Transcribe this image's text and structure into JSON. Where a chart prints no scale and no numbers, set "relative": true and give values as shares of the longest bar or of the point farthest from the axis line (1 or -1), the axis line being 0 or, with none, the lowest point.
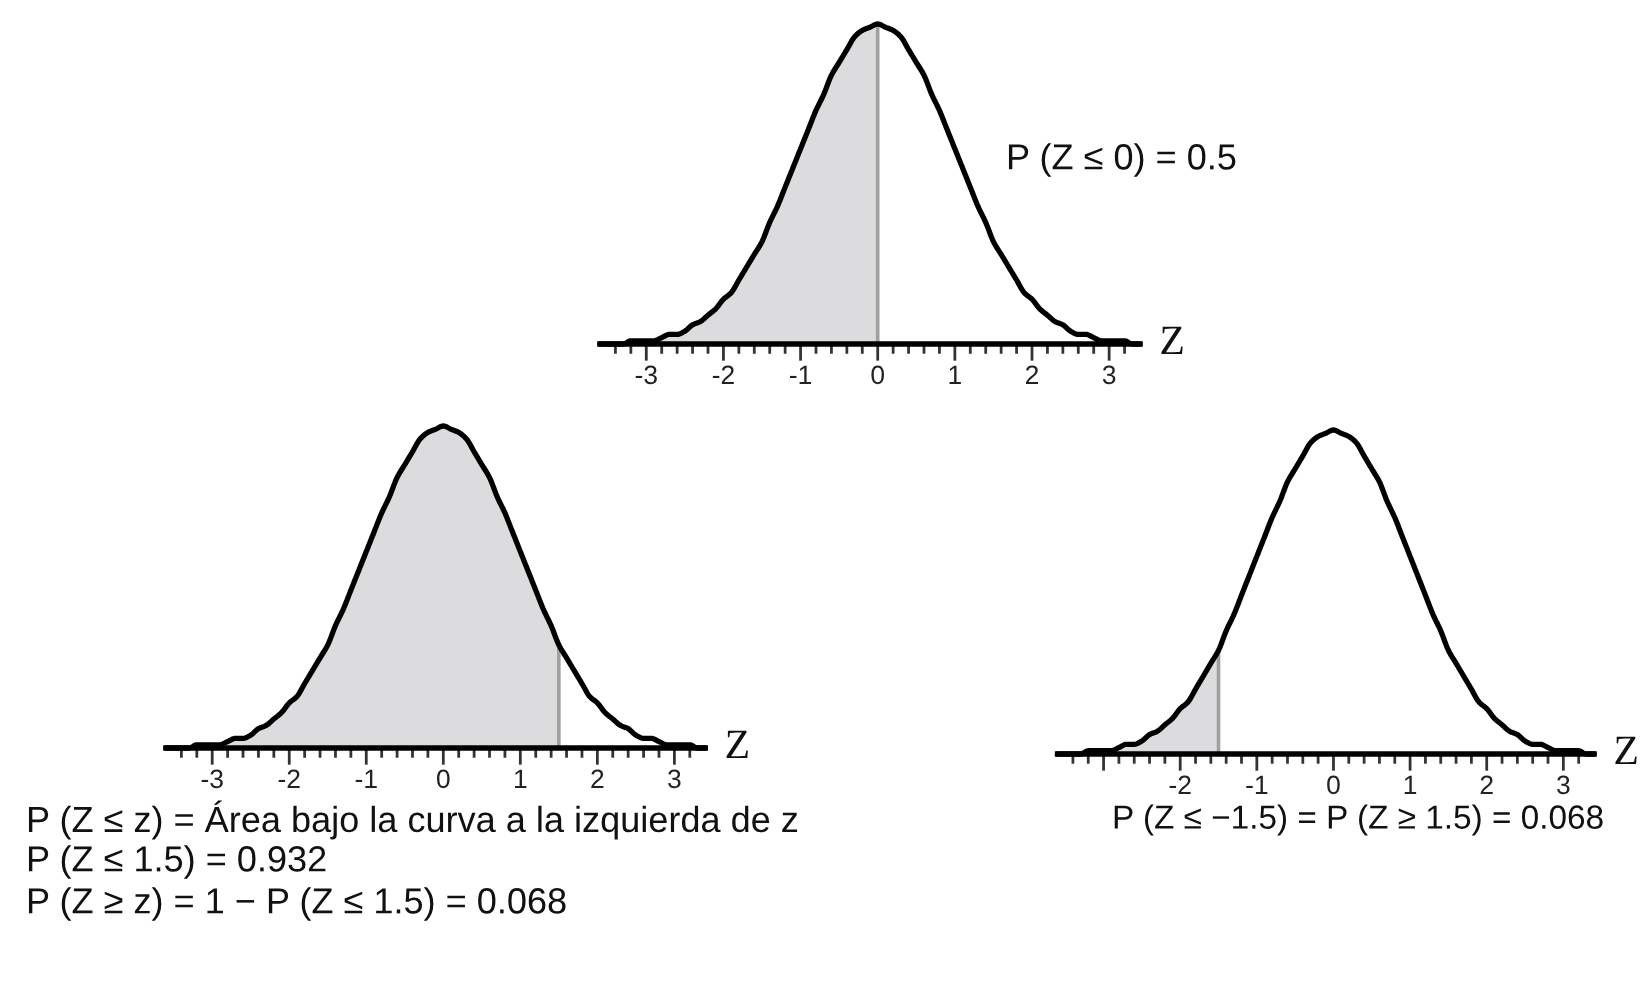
{
  "chart_data": [
    {
      "type": "line",
      "relative": true,
      "xlabel": "Z",
      "xlim": [
        -3.6,
        3.4
      ],
      "xticks": [
        {
          "value": -3.4,
          "label": null
        },
        {
          "value": -3.2,
          "label": null
        },
        -3,
        {
          "value": -2.8,
          "label": null
        },
        {
          "value": -2.6,
          "label": null
        },
        {
          "value": -2.4,
          "label": null
        },
        {
          "value": -2.2,
          "label": null
        },
        -2,
        {
          "value": -1.8,
          "label": null
        },
        {
          "value": -1.6,
          "label": null
        },
        {
          "value": -1.4,
          "label": null
        },
        {
          "value": -1.2,
          "label": null
        },
        -1,
        {
          "value": -0.8,
          "label": null
        },
        {
          "value": -0.6,
          "label": null
        },
        {
          "value": -0.4,
          "label": null
        },
        {
          "value": -0.2,
          "label": null
        },
        0,
        {
          "value": 0.2,
          "label": null
        },
        {
          "value": 0.4,
          "label": null
        },
        {
          "value": 0.6,
          "label": null
        },
        {
          "value": 0.8,
          "label": null
        },
        1,
        {
          "value": 1.2,
          "label": null
        },
        {
          "value": 1.4,
          "label": null
        },
        {
          "value": 1.6,
          "label": null
        },
        {
          "value": 1.8,
          "label": null
        },
        2,
        {
          "value": 2.2,
          "label": null
        },
        {
          "value": 2.4,
          "label": null
        },
        {
          "value": 2.6,
          "label": null
        },
        {
          "value": 2.8,
          "label": null
        },
        3,
        {
          "value": 3.2,
          "label": null
        }
      ],
      "x": [
        -3.6,
        -3.5,
        -3.4,
        -3.3,
        -3.2,
        -3.1,
        -3.0,
        -2.9,
        -2.8,
        -2.7,
        -2.6,
        -2.5,
        -2.4,
        -2.3,
        -2.2,
        -2.1,
        -2.0,
        -1.9,
        -1.8,
        -1.7,
        -1.6,
        -1.5,
        -1.4,
        -1.3,
        -1.2,
        -1.1,
        -1.0,
        -0.9,
        -0.8,
        -0.7,
        -0.6,
        -0.5,
        -0.4,
        -0.3,
        -0.2,
        -0.1,
        0,
        0.1,
        0.2,
        0.3,
        0.4,
        0.5,
        0.6,
        0.7,
        0.8,
        0.9,
        1.0,
        1.1,
        1.2,
        1.3,
        1.4,
        1.5,
        1.6,
        1.7,
        1.8,
        1.9,
        2.0,
        2.1,
        2.2,
        2.3,
        2.4,
        2.5,
        2.6,
        2.7,
        2.8,
        2.9,
        3.0,
        3.1,
        3.2,
        3.3,
        3.4
      ],
      "series": [
        {
          "type": "area",
          "color": "#dcdcdf",
          "x": [
            -3.6,
            -3.5,
            -3.4,
            -3.3,
            -3.2,
            -3.1,
            -3.0,
            -2.9,
            -2.8,
            -2.7,
            -2.6,
            -2.5,
            -2.4,
            -2.3,
            -2.2,
            -2.1,
            -2.0,
            -1.9,
            -1.8,
            -1.7,
            -1.6,
            -1.5,
            -1.4,
            -1.3,
            -1.2,
            -1.1,
            -1.0,
            -0.9,
            -0.8,
            -0.7,
            -0.6,
            -0.5,
            -0.4,
            -0.3,
            -0.2,
            -0.1,
            0
          ],
          "values": [
            0,
            0,
            0,
            0,
            0.01,
            0.01,
            0.01,
            0.01,
            0.02,
            0.03,
            0.03,
            0.04,
            0.06,
            0.07,
            0.09,
            0.11,
            0.14,
            0.16,
            0.2,
            0.24,
            0.28,
            0.32,
            0.38,
            0.43,
            0.49,
            0.55,
            0.61,
            0.67,
            0.73,
            0.78,
            0.84,
            0.88,
            0.92,
            0.96,
            0.98,
            0.99,
            1.0
          ]
        },
        {
          "color": "#000000",
          "values": [
            0,
            0,
            0,
            0,
            0.01,
            0.01,
            0.01,
            0.01,
            0.02,
            0.03,
            0.03,
            0.04,
            0.06,
            0.07,
            0.09,
            0.11,
            0.14,
            0.16,
            0.2,
            0.24,
            0.28,
            0.32,
            0.38,
            0.43,
            0.49,
            0.55,
            0.61,
            0.67,
            0.73,
            0.78,
            0.84,
            0.88,
            0.92,
            0.96,
            0.98,
            0.99,
            1.0,
            0.99,
            0.98,
            0.96,
            0.92,
            0.88,
            0.84,
            0.78,
            0.73,
            0.67,
            0.61,
            0.55,
            0.49,
            0.43,
            0.38,
            0.32,
            0.28,
            0.24,
            0.2,
            0.16,
            0.14,
            0.11,
            0.09,
            0.07,
            0.06,
            0.04,
            0.03,
            0.03,
            0.02,
            0.01,
            0.01,
            0.01,
            0.01,
            0,
            0
          ]
        }
      ],
      "ref_lines": [
        {
          "axis": "x",
          "value": 0,
          "color": "#a0a0a0"
        }
      ],
      "annotations": [
        "P (Z ≤ 0) = 0.5"
      ]
    },
    {
      "type": "line",
      "relative": true,
      "xlabel": "Z",
      "xlim": [
        -3.6,
        3.4
      ],
      "xticks": [
        {
          "value": -3.4,
          "label": null
        },
        {
          "value": -3.2,
          "label": null
        },
        -3,
        {
          "value": -2.8,
          "label": null
        },
        {
          "value": -2.6,
          "label": null
        },
        {
          "value": -2.4,
          "label": null
        },
        {
          "value": -2.2,
          "label": null
        },
        -2,
        {
          "value": -1.8,
          "label": null
        },
        {
          "value": -1.6,
          "label": null
        },
        {
          "value": -1.4,
          "label": null
        },
        {
          "value": -1.2,
          "label": null
        },
        -1,
        {
          "value": -0.8,
          "label": null
        },
        {
          "value": -0.6,
          "label": null
        },
        {
          "value": -0.4,
          "label": null
        },
        {
          "value": -0.2,
          "label": null
        },
        0,
        {
          "value": 0.2,
          "label": null
        },
        {
          "value": 0.4,
          "label": null
        },
        {
          "value": 0.6,
          "label": null
        },
        {
          "value": 0.8,
          "label": null
        },
        1,
        {
          "value": 1.2,
          "label": null
        },
        {
          "value": 1.4,
          "label": null
        },
        {
          "value": 1.6,
          "label": null
        },
        {
          "value": 1.8,
          "label": null
        },
        2,
        {
          "value": 2.2,
          "label": null
        },
        {
          "value": 2.4,
          "label": null
        },
        {
          "value": 2.6,
          "label": null
        },
        {
          "value": 2.8,
          "label": null
        },
        3,
        {
          "value": 3.2,
          "label": null
        }
      ],
      "x": [
        -3.6,
        -3.5,
        -3.4,
        -3.3,
        -3.2,
        -3.1,
        -3.0,
        -2.9,
        -2.8,
        -2.7,
        -2.6,
        -2.5,
        -2.4,
        -2.3,
        -2.2,
        -2.1,
        -2.0,
        -1.9,
        -1.8,
        -1.7,
        -1.6,
        -1.5,
        -1.4,
        -1.3,
        -1.2,
        -1.1,
        -1.0,
        -0.9,
        -0.8,
        -0.7,
        -0.6,
        -0.5,
        -0.4,
        -0.3,
        -0.2,
        -0.1,
        0,
        0.1,
        0.2,
        0.3,
        0.4,
        0.5,
        0.6,
        0.7,
        0.8,
        0.9,
        1.0,
        1.1,
        1.2,
        1.3,
        1.4,
        1.5,
        1.6,
        1.7,
        1.8,
        1.9,
        2.0,
        2.1,
        2.2,
        2.3,
        2.4,
        2.5,
        2.6,
        2.7,
        2.8,
        2.9,
        3.0,
        3.1,
        3.2,
        3.3,
        3.4
      ],
      "series": [
        {
          "type": "area",
          "color": "#dcdcdf",
          "x": [
            -3.6,
            -3.5,
            -3.4,
            -3.3,
            -3.2,
            -3.1,
            -3.0,
            -2.9,
            -2.8,
            -2.7,
            -2.6,
            -2.5,
            -2.4,
            -2.3,
            -2.2,
            -2.1,
            -2.0,
            -1.9,
            -1.8,
            -1.7,
            -1.6,
            -1.5,
            -1.4,
            -1.3,
            -1.2,
            -1.1,
            -1.0,
            -0.9,
            -0.8,
            -0.7,
            -0.6,
            -0.5,
            -0.4,
            -0.3,
            -0.2,
            -0.1,
            0,
            0.1,
            0.2,
            0.3,
            0.4,
            0.5,
            0.6,
            0.7,
            0.8,
            0.9,
            1.0,
            1.1,
            1.2,
            1.3,
            1.4,
            1.5
          ],
          "values": [
            0,
            0,
            0,
            0,
            0.01,
            0.01,
            0.01,
            0.01,
            0.02,
            0.03,
            0.03,
            0.04,
            0.06,
            0.07,
            0.09,
            0.11,
            0.14,
            0.16,
            0.2,
            0.24,
            0.28,
            0.32,
            0.38,
            0.43,
            0.49,
            0.55,
            0.61,
            0.67,
            0.73,
            0.78,
            0.84,
            0.88,
            0.92,
            0.96,
            0.98,
            0.99,
            1.0,
            0.99,
            0.98,
            0.96,
            0.92,
            0.88,
            0.84,
            0.78,
            0.73,
            0.67,
            0.61,
            0.55,
            0.49,
            0.43,
            0.38,
            0.32
          ]
        },
        {
          "color": "#000000",
          "values": [
            0,
            0,
            0,
            0,
            0.01,
            0.01,
            0.01,
            0.01,
            0.02,
            0.03,
            0.03,
            0.04,
            0.06,
            0.07,
            0.09,
            0.11,
            0.14,
            0.16,
            0.2,
            0.24,
            0.28,
            0.32,
            0.38,
            0.43,
            0.49,
            0.55,
            0.61,
            0.67,
            0.73,
            0.78,
            0.84,
            0.88,
            0.92,
            0.96,
            0.98,
            0.99,
            1.0,
            0.99,
            0.98,
            0.96,
            0.92,
            0.88,
            0.84,
            0.78,
            0.73,
            0.67,
            0.61,
            0.55,
            0.49,
            0.43,
            0.38,
            0.32,
            0.28,
            0.24,
            0.2,
            0.16,
            0.14,
            0.11,
            0.09,
            0.07,
            0.06,
            0.04,
            0.03,
            0.03,
            0.02,
            0.01,
            0.01,
            0.01,
            0.01,
            0,
            0
          ]
        }
      ],
      "ref_lines": [
        {
          "axis": "x",
          "value": 1.5,
          "color": "#a0a0a0"
        }
      ],
      "annotations": [
        "P (Z ≤ z) = Área bajo la curva a la izquierda de z",
        "P (Z ≤ 1.5) = 0.932",
        "P (Z ≥ z) = 1 − P (Z ≤ 1.5) = 0.068"
      ]
    },
    {
      "type": "line",
      "relative": true,
      "xlabel": "Z",
      "xlim": [
        -3.6,
        3.4
      ],
      "xticks": [
        {
          "value": -3.4,
          "label": null
        },
        {
          "value": -3.2,
          "label": null
        },
        {
          "value": -3,
          "label": null
        },
        {
          "value": -2.8,
          "label": null
        },
        {
          "value": -2.6,
          "label": null
        },
        {
          "value": -2.4,
          "label": null
        },
        {
          "value": -2.2,
          "label": null
        },
        -2,
        {
          "value": -1.8,
          "label": null
        },
        {
          "value": -1.6,
          "label": null
        },
        {
          "value": -1.4,
          "label": null
        },
        {
          "value": -1.2,
          "label": null
        },
        -1,
        {
          "value": -0.8,
          "label": null
        },
        {
          "value": -0.6,
          "label": null
        },
        {
          "value": -0.4,
          "label": null
        },
        {
          "value": -0.2,
          "label": null
        },
        0,
        {
          "value": 0.2,
          "label": null
        },
        {
          "value": 0.4,
          "label": null
        },
        {
          "value": 0.6,
          "label": null
        },
        {
          "value": 0.8,
          "label": null
        },
        1,
        {
          "value": 1.2,
          "label": null
        },
        {
          "value": 1.4,
          "label": null
        },
        {
          "value": 1.6,
          "label": null
        },
        {
          "value": 1.8,
          "label": null
        },
        2,
        {
          "value": 2.2,
          "label": null
        },
        {
          "value": 2.4,
          "label": null
        },
        {
          "value": 2.6,
          "label": null
        },
        {
          "value": 2.8,
          "label": null
        },
        3,
        {
          "value": 3.2,
          "label": null
        }
      ],
      "x": [
        -3.6,
        -3.5,
        -3.4,
        -3.3,
        -3.2,
        -3.1,
        -3.0,
        -2.9,
        -2.8,
        -2.7,
        -2.6,
        -2.5,
        -2.4,
        -2.3,
        -2.2,
        -2.1,
        -2.0,
        -1.9,
        -1.8,
        -1.7,
        -1.6,
        -1.5,
        -1.4,
        -1.3,
        -1.2,
        -1.1,
        -1.0,
        -0.9,
        -0.8,
        -0.7,
        -0.6,
        -0.5,
        -0.4,
        -0.3,
        -0.2,
        -0.1,
        0,
        0.1,
        0.2,
        0.3,
        0.4,
        0.5,
        0.6,
        0.7,
        0.8,
        0.9,
        1.0,
        1.1,
        1.2,
        1.3,
        1.4,
        1.5,
        1.6,
        1.7,
        1.8,
        1.9,
        2.0,
        2.1,
        2.2,
        2.3,
        2.4,
        2.5,
        2.6,
        2.7,
        2.8,
        2.9,
        3.0,
        3.1,
        3.2,
        3.3,
        3.4
      ],
      "series": [
        {
          "type": "area",
          "color": "#dcdcdf",
          "x": [
            -3.6,
            -3.5,
            -3.4,
            -3.3,
            -3.2,
            -3.1,
            -3.0,
            -2.9,
            -2.8,
            -2.7,
            -2.6,
            -2.5,
            -2.4,
            -2.3,
            -2.2,
            -2.1,
            -2.0,
            -1.9,
            -1.8,
            -1.7,
            -1.6,
            -1.5
          ],
          "values": [
            0,
            0,
            0,
            0,
            0.01,
            0.01,
            0.01,
            0.01,
            0.02,
            0.03,
            0.03,
            0.04,
            0.06,
            0.07,
            0.09,
            0.11,
            0.14,
            0.16,
            0.2,
            0.24,
            0.28,
            0.32
          ]
        },
        {
          "color": "#000000",
          "values": [
            0,
            0,
            0,
            0,
            0.01,
            0.01,
            0.01,
            0.01,
            0.02,
            0.03,
            0.03,
            0.04,
            0.06,
            0.07,
            0.09,
            0.11,
            0.14,
            0.16,
            0.2,
            0.24,
            0.28,
            0.32,
            0.38,
            0.43,
            0.49,
            0.55,
            0.61,
            0.67,
            0.73,
            0.78,
            0.84,
            0.88,
            0.92,
            0.96,
            0.98,
            0.99,
            1.0,
            0.99,
            0.98,
            0.96,
            0.92,
            0.88,
            0.84,
            0.78,
            0.73,
            0.67,
            0.61,
            0.55,
            0.49,
            0.43,
            0.38,
            0.32,
            0.28,
            0.24,
            0.2,
            0.16,
            0.14,
            0.11,
            0.09,
            0.07,
            0.06,
            0.04,
            0.03,
            0.03,
            0.02,
            0.01,
            0.01,
            0.01,
            0.01,
            0,
            0
          ]
        }
      ],
      "ref_lines": [
        {
          "axis": "x",
          "value": -1.5,
          "color": "#a0a0a0"
        }
      ],
      "annotations": [
        "P (Z ≤ −1.5) = P (Z ≥ 1.5) = 0.068"
      ]
    }
  ]
}
